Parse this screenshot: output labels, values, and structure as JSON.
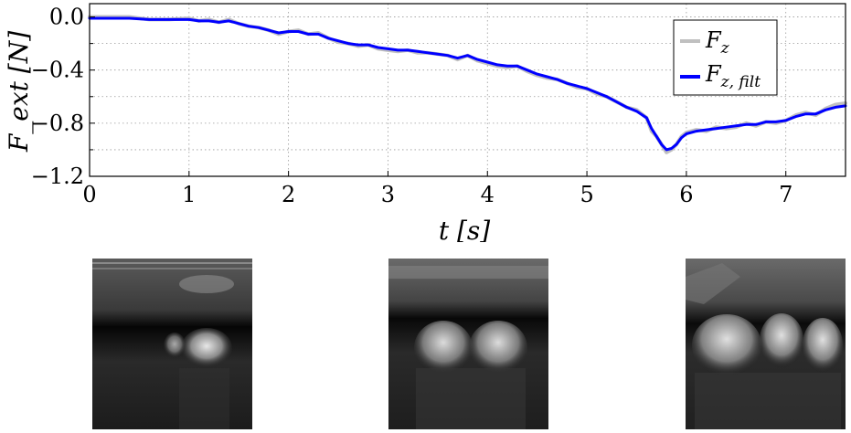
{
  "chart_data": {
    "type": "line",
    "xlabel": "t  [s]",
    "ylabel": "F_ext  [N]",
    "xlim": [
      0,
      7.6
    ],
    "ylim": [
      -1.2,
      0.1
    ],
    "xticks": [
      "0",
      "1",
      "2",
      "3",
      "4",
      "5",
      "6",
      "7"
    ],
    "yticks": [
      "0.0",
      "−0.4",
      "−0.8",
      "−1.2"
    ],
    "ytick_values": [
      0.0,
      -0.4,
      -0.8,
      -1.2
    ],
    "grid": true,
    "legend_position": "top-right",
    "series": [
      {
        "name": "F_z",
        "color": "#c0c0c0",
        "x": [
          0,
          0.2,
          0.4,
          0.6,
          0.8,
          1.0,
          1.1,
          1.2,
          1.3,
          1.4,
          1.5,
          1.6,
          1.7,
          1.8,
          1.9,
          2.0,
          2.1,
          2.2,
          2.3,
          2.4,
          2.5,
          2.6,
          2.7,
          2.8,
          2.9,
          3.0,
          3.1,
          3.2,
          3.3,
          3.4,
          3.5,
          3.6,
          3.7,
          3.8,
          3.9,
          4.0,
          4.1,
          4.2,
          4.3,
          4.4,
          4.5,
          4.6,
          4.7,
          4.8,
          4.9,
          5.0,
          5.1,
          5.2,
          5.3,
          5.4,
          5.5,
          5.6,
          5.65,
          5.7,
          5.75,
          5.8,
          5.85,
          5.9,
          5.95,
          6.0,
          6.1,
          6.2,
          6.3,
          6.4,
          6.5,
          6.6,
          6.7,
          6.8,
          6.9,
          7.0,
          7.1,
          7.2,
          7.3,
          7.4,
          7.5,
          7.6
        ],
        "y": [
          0.0,
          0.0,
          0.0,
          -0.02,
          -0.02,
          -0.01,
          -0.03,
          -0.02,
          -0.04,
          -0.02,
          -0.05,
          -0.07,
          -0.08,
          -0.1,
          -0.13,
          -0.11,
          -0.1,
          -0.13,
          -0.12,
          -0.16,
          -0.19,
          -0.2,
          -0.22,
          -0.21,
          -0.24,
          -0.25,
          -0.26,
          -0.25,
          -0.27,
          -0.27,
          -0.28,
          -0.29,
          -0.32,
          -0.29,
          -0.33,
          -0.35,
          -0.37,
          -0.38,
          -0.37,
          -0.41,
          -0.44,
          -0.46,
          -0.47,
          -0.5,
          -0.53,
          -0.54,
          -0.58,
          -0.6,
          -0.64,
          -0.68,
          -0.7,
          -0.76,
          -0.86,
          -0.9,
          -0.96,
          -1.02,
          -1.0,
          -0.96,
          -0.9,
          -0.87,
          -0.85,
          -0.86,
          -0.83,
          -0.84,
          -0.83,
          -0.8,
          -0.82,
          -0.79,
          -0.8,
          -0.78,
          -0.74,
          -0.72,
          -0.74,
          -0.69,
          -0.66,
          -0.65
        ]
      },
      {
        "name": "F_z,filt",
        "color": "#0000ff",
        "x": [
          0,
          0.2,
          0.4,
          0.6,
          0.8,
          1.0,
          1.1,
          1.2,
          1.3,
          1.4,
          1.5,
          1.6,
          1.7,
          1.8,
          1.9,
          2.0,
          2.1,
          2.2,
          2.3,
          2.4,
          2.5,
          2.6,
          2.7,
          2.8,
          2.9,
          3.0,
          3.1,
          3.2,
          3.3,
          3.4,
          3.5,
          3.6,
          3.7,
          3.8,
          3.9,
          4.0,
          4.1,
          4.2,
          4.3,
          4.4,
          4.5,
          4.6,
          4.7,
          4.8,
          4.9,
          5.0,
          5.1,
          5.2,
          5.3,
          5.4,
          5.5,
          5.6,
          5.65,
          5.7,
          5.75,
          5.8,
          5.85,
          5.9,
          5.95,
          6.0,
          6.1,
          6.2,
          6.3,
          6.4,
          6.5,
          6.6,
          6.7,
          6.8,
          6.9,
          7.0,
          7.1,
          7.2,
          7.3,
          7.4,
          7.5,
          7.6
        ],
        "y": [
          -0.01,
          -0.01,
          -0.01,
          -0.02,
          -0.02,
          -0.02,
          -0.03,
          -0.03,
          -0.04,
          -0.03,
          -0.05,
          -0.07,
          -0.08,
          -0.1,
          -0.12,
          -0.11,
          -0.11,
          -0.13,
          -0.13,
          -0.16,
          -0.18,
          -0.2,
          -0.21,
          -0.21,
          -0.23,
          -0.24,
          -0.25,
          -0.25,
          -0.26,
          -0.27,
          -0.28,
          -0.29,
          -0.31,
          -0.29,
          -0.32,
          -0.34,
          -0.36,
          -0.37,
          -0.37,
          -0.4,
          -0.43,
          -0.45,
          -0.47,
          -0.5,
          -0.52,
          -0.54,
          -0.57,
          -0.6,
          -0.64,
          -0.68,
          -0.71,
          -0.76,
          -0.84,
          -0.9,
          -0.96,
          -1.0,
          -0.99,
          -0.96,
          -0.91,
          -0.88,
          -0.86,
          -0.85,
          -0.84,
          -0.83,
          -0.82,
          -0.81,
          -0.81,
          -0.79,
          -0.79,
          -0.78,
          -0.75,
          -0.73,
          -0.73,
          -0.7,
          -0.68,
          -0.67
        ]
      }
    ]
  },
  "legend": {
    "items": [
      {
        "base": "F",
        "sub": "z",
        "color": "#c0c0c0"
      },
      {
        "base": "F",
        "sub": "z, filt",
        "color": "#0000ff"
      }
    ]
  },
  "images": {
    "panels": [
      {
        "name": "ultrasound-image-1"
      },
      {
        "name": "ultrasound-image-2"
      },
      {
        "name": "ultrasound-image-3"
      }
    ]
  }
}
